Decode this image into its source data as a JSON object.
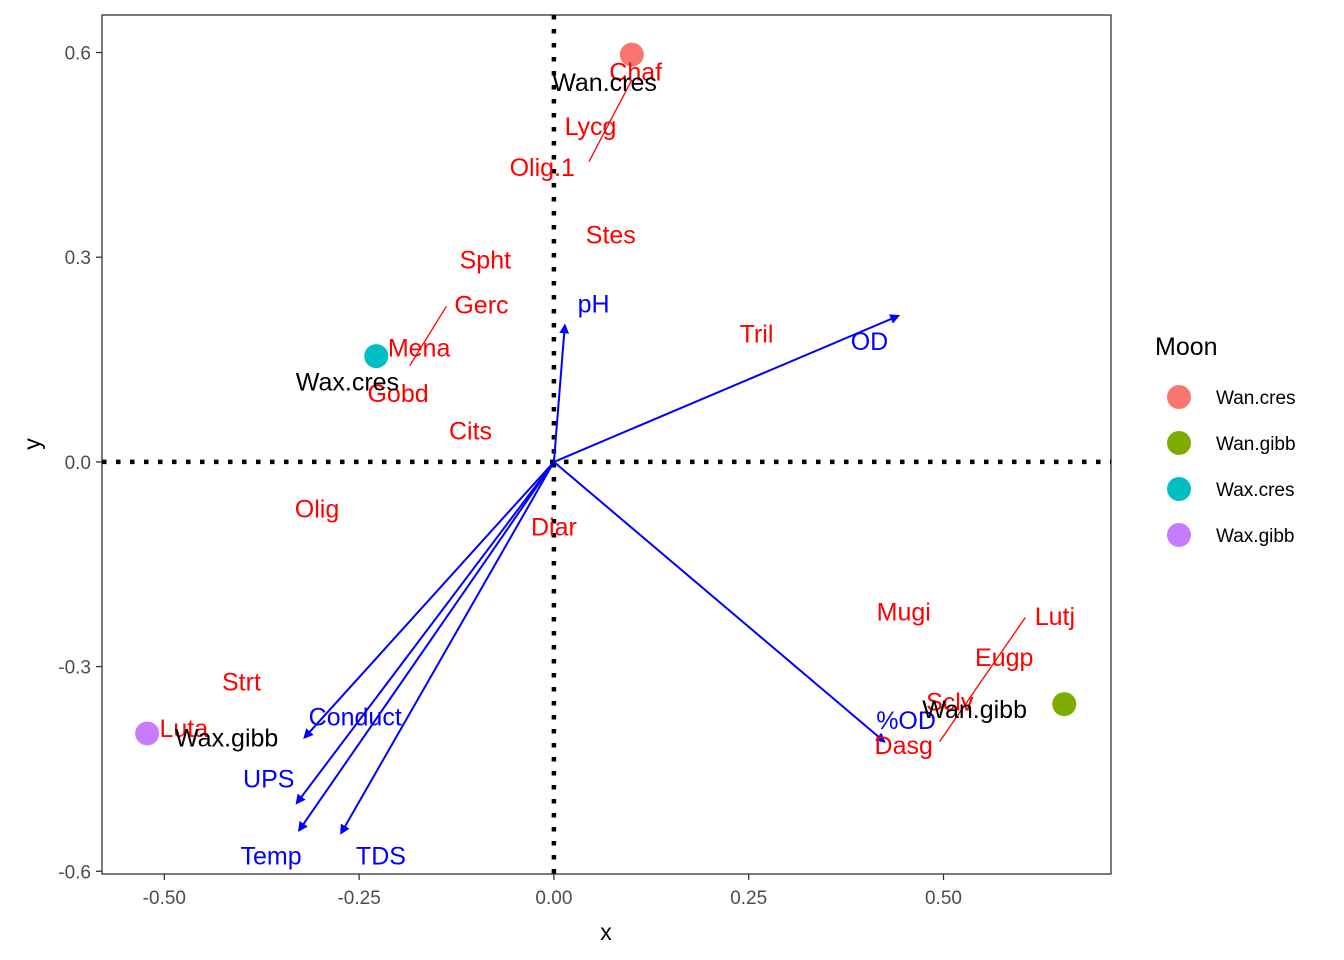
{
  "chart_data": {
    "type": "scatter",
    "xlabel": "x",
    "ylabel": "y",
    "xlim": [
      -0.58,
      0.715
    ],
    "ylim": [
      -0.604,
      0.655
    ],
    "x_ticks": [
      {
        "value": -0.5,
        "label": "-0.50"
      },
      {
        "value": -0.25,
        "label": "-0.25"
      },
      {
        "value": 0.0,
        "label": "0.00"
      },
      {
        "value": 0.25,
        "label": "0.25"
      },
      {
        "value": 0.5,
        "label": "0.50"
      }
    ],
    "y_ticks": [
      {
        "value": -0.6,
        "label": "-0.6"
      },
      {
        "value": -0.3,
        "label": "-0.3"
      },
      {
        "value": 0.0,
        "label": "0.0"
      },
      {
        "value": 0.3,
        "label": "0.3"
      },
      {
        "value": 0.6,
        "label": "0.6"
      }
    ],
    "grid": false,
    "reference_lines": {
      "x": 0,
      "y": 0,
      "style": "dotted",
      "color": "#000000"
    },
    "legend": {
      "title": "Moon",
      "placement": "right",
      "entries": [
        {
          "label": "Wan.cres",
          "color": "#F8766D"
        },
        {
          "label": "Wan.gibb",
          "color": "#7CAE00"
        },
        {
          "label": "Wax.cres",
          "color": "#00BFC4"
        },
        {
          "label": "Wax.gibb",
          "color": "#C77CFF"
        }
      ]
    },
    "sites": [
      {
        "label": "Wan.cres",
        "x": 0.1,
        "y": 0.597,
        "color": "#F8766D",
        "label_x": 0.065,
        "label_y": 0.557
      },
      {
        "label": "Wan.gibb",
        "x": 0.655,
        "y": -0.355,
        "color": "#7CAE00",
        "label_x": 0.54,
        "label_y": -0.362
      },
      {
        "label": "Wax.cres",
        "x": -0.228,
        "y": 0.155,
        "color": "#00BFC4",
        "label_x": -0.265,
        "label_y": 0.118
      },
      {
        "label": "Wax.gibb",
        "x": -0.522,
        "y": -0.398,
        "color": "#C77CFF",
        "label_x": -0.42,
        "label_y": -0.404
      }
    ],
    "species_color": "#FF0000",
    "species": [
      {
        "label": "Chaf",
        "x": 0.105,
        "y": 0.572
      },
      {
        "label": "Lycg",
        "x": 0.047,
        "y": 0.492
      },
      {
        "label": "Olig.1",
        "x": -0.015,
        "y": 0.432
      },
      {
        "label": "Stes",
        "x": 0.073,
        "y": 0.333
      },
      {
        "label": "Spht",
        "x": -0.088,
        "y": 0.297
      },
      {
        "label": "Gerc",
        "x": -0.093,
        "y": 0.231
      },
      {
        "label": "Mena",
        "x": -0.173,
        "y": 0.168
      },
      {
        "label": "Gobd",
        "x": -0.2,
        "y": 0.101
      },
      {
        "label": "Cits",
        "x": -0.107,
        "y": 0.046
      },
      {
        "label": "Tril",
        "x": 0.26,
        "y": 0.188
      },
      {
        "label": "Olig",
        "x": -0.304,
        "y": -0.068
      },
      {
        "label": "Diar",
        "x": 0.0,
        "y": -0.095
      },
      {
        "label": "Mugi",
        "x": 0.449,
        "y": -0.219
      },
      {
        "label": "Lutj",
        "x": 0.643,
        "y": -0.226
      },
      {
        "label": "Eugp",
        "x": 0.578,
        "y": -0.286
      },
      {
        "label": "Sclv",
        "x": 0.508,
        "y": -0.351
      },
      {
        "label": "Dasg",
        "x": 0.449,
        "y": -0.415
      },
      {
        "label": "Strt",
        "x": -0.401,
        "y": -0.322
      },
      {
        "label": "Luta",
        "x": -0.475,
        "y": -0.39
      }
    ],
    "repel_segments": [
      {
        "from": [
          0.045,
          0.44
        ],
        "to": [
          0.1,
          0.56
        ]
      },
      {
        "from": [
          -0.185,
          0.141
        ],
        "to": [
          -0.138,
          0.228
        ]
      },
      {
        "from": [
          0.495,
          -0.41
        ],
        "to": [
          0.605,
          -0.228
        ]
      }
    ],
    "env_color": "#0000FF",
    "env_vectors": [
      {
        "label": "pH",
        "x": 0.014,
        "y": 0.2,
        "label_x": 0.051,
        "label_y": 0.232
      },
      {
        "label": "OD",
        "x": 0.442,
        "y": 0.214,
        "label_x": 0.405,
        "label_y": 0.177
      },
      {
        "label": "%OD",
        "x": 0.424,
        "y": -0.41,
        "label_x": 0.452,
        "label_y": -0.378
      },
      {
        "label": "Conduct",
        "x": -0.32,
        "y": -0.404,
        "label_x": -0.255,
        "label_y": -0.373
      },
      {
        "label": "UPS",
        "x": -0.33,
        "y": -0.5,
        "label_x": -0.366,
        "label_y": -0.464
      },
      {
        "label": "Temp",
        "x": -0.327,
        "y": -0.54,
        "label_x": -0.363,
        "label_y": -0.577
      },
      {
        "label": "TDS",
        "x": -0.273,
        "y": -0.544,
        "label_x": -0.222,
        "label_y": -0.577
      }
    ]
  }
}
